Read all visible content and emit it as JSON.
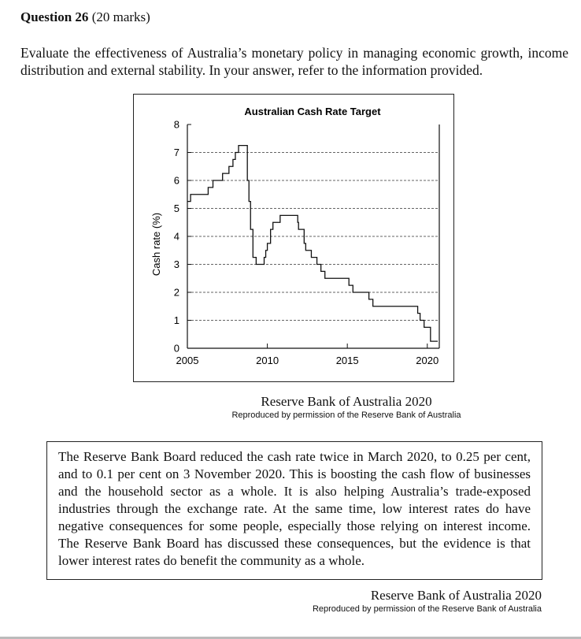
{
  "question": {
    "number_label": "Question 26",
    "marks": "(20 marks)"
  },
  "prompt": "Evaluate the effectiveness of Australia’s monetary policy in managing economic growth, income distribution and external stability. In your answer, refer to the information provided.",
  "source1": {
    "main": "Reserve Bank of Australia 2020",
    "sub": "Reproduced by permission of the Reserve Bank of Australia"
  },
  "quote": "The Reserve Bank Board reduced the cash rate twice in March 2020, to 0.25 per cent, and to 0.1 per cent on 3 November 2020. This is boosting the cash flow of businesses and the household sector as a whole. It is also helping Australia’s trade-exposed industries through the exchange rate. At the same time, low interest rates do have negative consequences for some people, especially those relying on interest income. The Reserve Bank Board has discussed these consequences, but the evidence is that lower interest rates do benefit the community as a whole.",
  "source2": {
    "main": "Reserve Bank of Australia 2020",
    "sub": "Reproduced by permission of the Reserve Bank of Australia"
  },
  "chart_data": {
    "type": "line",
    "title": "Australian Cash Rate Target",
    "xlabel": "",
    "ylabel": "Cash rate (%)",
    "xlim": [
      2005,
      2020.75
    ],
    "ylim": [
      0,
      8
    ],
    "x_ticks": [
      2005,
      2010,
      2015,
      2020
    ],
    "y_ticks": [
      0,
      1,
      2,
      3,
      4,
      5,
      6,
      7,
      8
    ],
    "gridlines_y": [
      1,
      2,
      3,
      4,
      5,
      6,
      7
    ],
    "grid": "dashed horizontal",
    "step": true,
    "series": [
      {
        "name": "",
        "x": [
          2005.0,
          2005.2,
          2006.3,
          2006.6,
          2007.2,
          2007.6,
          2007.85,
          2008.0,
          2008.2,
          2008.75,
          2008.85,
          2008.95,
          2009.1,
          2009.3,
          2009.8,
          2009.9,
          2010.0,
          2010.2,
          2010.35,
          2010.8,
          2011.9,
          2011.95,
          2012.3,
          2012.4,
          2012.75,
          2013.1,
          2013.35,
          2013.6,
          2015.1,
          2015.35,
          2016.35,
          2016.6,
          2019.4,
          2019.55,
          2019.8,
          2020.2,
          2020.85
        ],
        "y": [
          5.25,
          5.5,
          5.75,
          6.0,
          6.25,
          6.5,
          6.75,
          7.0,
          7.25,
          6.0,
          5.25,
          4.25,
          3.25,
          3.0,
          3.25,
          3.5,
          3.75,
          4.25,
          4.5,
          4.75,
          4.5,
          4.25,
          3.75,
          3.5,
          3.25,
          3.0,
          2.75,
          2.5,
          2.25,
          2.0,
          1.75,
          1.5,
          1.25,
          1.0,
          0.75,
          0.25,
          0.25
        ]
      }
    ]
  }
}
